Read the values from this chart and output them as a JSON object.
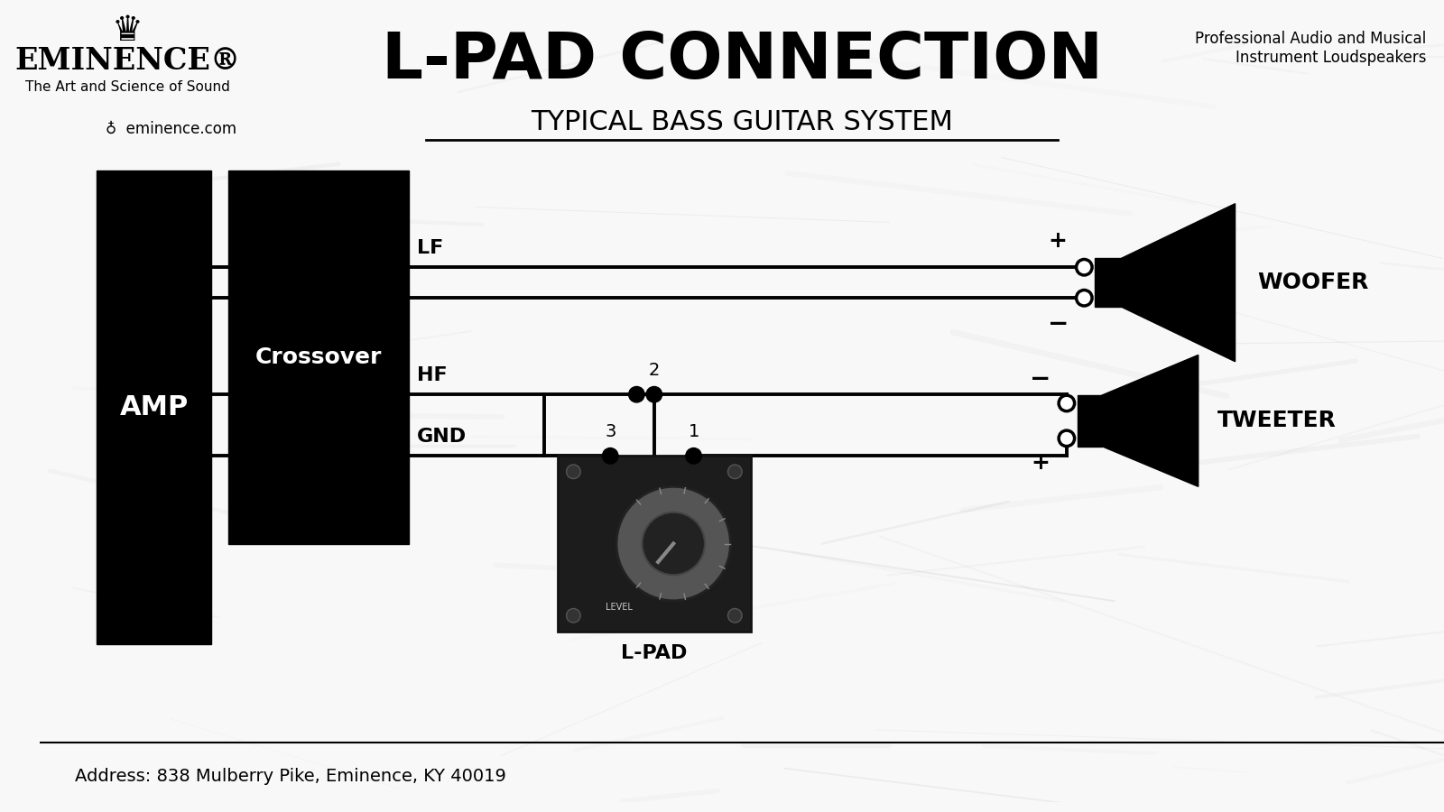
{
  "title": "L-PAD CONNECTION",
  "subtitle": "TYPICAL BASS GUITAR SYSTEM",
  "bg_color": "#f5f5f5",
  "line_color": "#000000",
  "line_width": 2.8,
  "address": "Address: 838 Mulberry Pike, Eminence, KY 40019",
  "eminence_text": "EMINENCE®",
  "tagline": "The Art and Science of Sound",
  "website": "eminence.com",
  "top_right": "Professional Audio and Musical\nInstrument Loudspeakers",
  "amp_label": "AMP",
  "crossover_label": "Crossover",
  "lpad_label": "L-PAD",
  "woofer_label": "WOOFER",
  "tweeter_label": "TWEETER",
  "lf_label": "LF",
  "hf_label": "HF",
  "gnd_label": "GND"
}
